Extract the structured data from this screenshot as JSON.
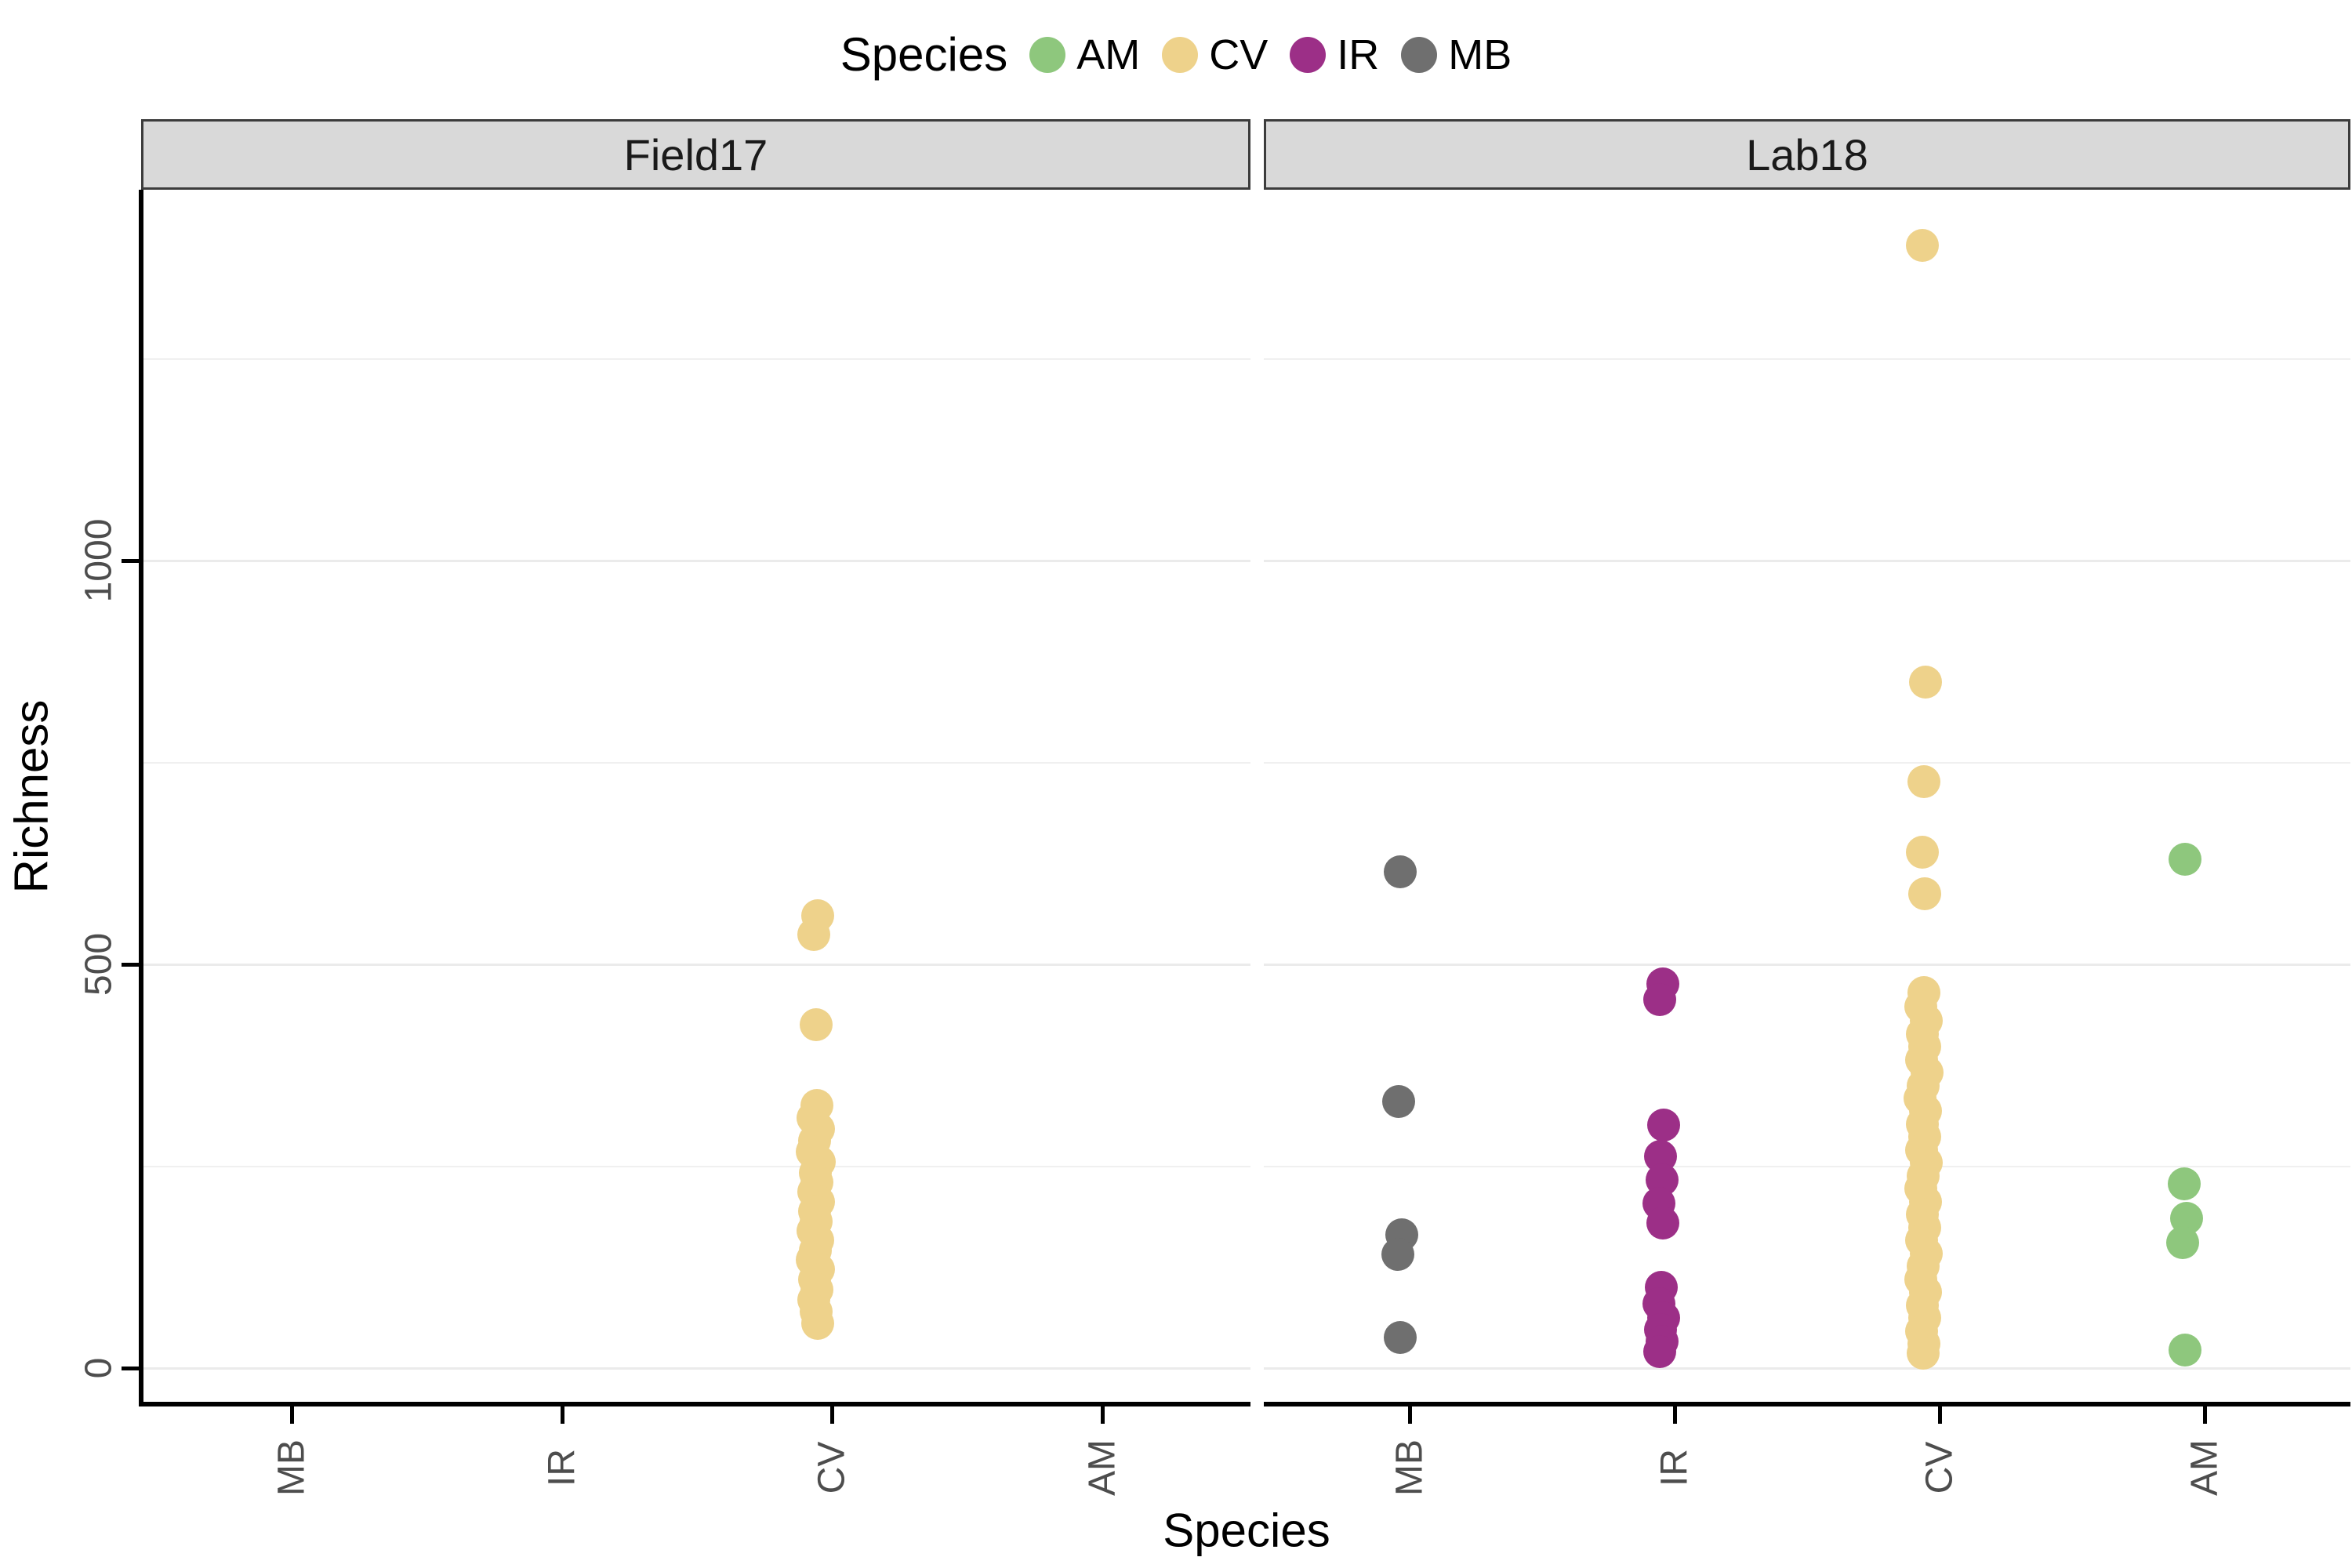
{
  "legend": {
    "title": "Species",
    "items": [
      {
        "label": "AM",
        "color": "#8ec77d"
      },
      {
        "label": "CV",
        "color": "#eed28b"
      },
      {
        "label": "IR",
        "color": "#9c2f87"
      },
      {
        "label": "MB",
        "color": "#6f6f6f"
      }
    ]
  },
  "chart_data": {
    "type": "scatter",
    "title": "",
    "xlabel": "Species",
    "ylabel": "Richness",
    "y_ticks": [
      0,
      500,
      1000
    ],
    "y_minor_gridlines": [
      250,
      750,
      1250
    ],
    "ylim": [
      -44,
      1460
    ],
    "grid": "on",
    "legend_position": "top",
    "x_categories": [
      "MB",
      "IR",
      "CV",
      "AM"
    ],
    "facets": [
      {
        "name": "Field17",
        "series": [
          {
            "species": "CV",
            "points": [
              [
                560,
                -18
              ],
              [
                537,
                -23
              ],
              [
                425,
                -20
              ],
              [
                325,
                -19
              ],
              [
                310,
                -24
              ],
              [
                296,
                -17
              ],
              [
                282,
                -22
              ],
              [
                268,
                -25
              ],
              [
                255,
                -16
              ],
              [
                242,
                -21
              ],
              [
                230,
                -19
              ],
              [
                218,
                -23
              ],
              [
                206,
                -17
              ],
              [
                194,
                -22
              ],
              [
                182,
                -20
              ],
              [
                170,
                -24
              ],
              [
                158,
                -18
              ],
              [
                146,
                -21
              ],
              [
                134,
                -25
              ],
              [
                122,
                -17
              ],
              [
                110,
                -22
              ],
              [
                97,
                -19
              ],
              [
                84,
                -23
              ],
              [
                70,
                -20
              ],
              [
                55,
                -18
              ]
            ]
          }
        ]
      },
      {
        "name": "Lab18",
        "series": [
          {
            "species": "MB",
            "points": [
              [
                615,
                -12
              ],
              [
                330,
                -14
              ],
              [
                165,
                -10
              ],
              [
                141,
                -15
              ],
              [
                38,
                -12
              ]
            ]
          },
          {
            "species": "IR",
            "points": [
              [
                476,
                -15
              ],
              [
                456,
                -19
              ],
              [
                301,
                -14
              ],
              [
                262,
                -18
              ],
              [
                233,
                -16
              ],
              [
                204,
                -20
              ],
              [
                180,
                -15
              ],
              [
                100,
                -17
              ],
              [
                80,
                -20
              ],
              [
                62,
                -14
              ],
              [
                48,
                -18
              ],
              [
                33,
                -16
              ],
              [
                20,
                -19
              ]
            ]
          },
          {
            "species": "CV",
            "points": [
              [
                1390,
                -22
              ],
              [
                850,
                -18
              ],
              [
                726,
                -20
              ],
              [
                639,
                -22
              ],
              [
                587,
                -19
              ],
              [
                465,
                -20
              ],
              [
                448,
                -24
              ],
              [
                430,
                -17
              ],
              [
                414,
                -22
              ],
              [
                398,
                -19
              ],
              [
                382,
                -23
              ],
              [
                366,
                -16
              ],
              [
                350,
                -21
              ],
              [
                334,
                -25
              ],
              [
                318,
                -18
              ],
              [
                302,
                -22
              ],
              [
                286,
                -19
              ],
              [
                270,
                -23
              ],
              [
                254,
                -17
              ],
              [
                238,
                -21
              ],
              [
                222,
                -24
              ],
              [
                206,
                -18
              ],
              [
                190,
                -22
              ],
              [
                174,
                -19
              ],
              [
                158,
                -23
              ],
              [
                142,
                -17
              ],
              [
                126,
                -21
              ],
              [
                110,
                -24
              ],
              [
                94,
                -18
              ],
              [
                78,
                -22
              ],
              [
                62,
                -19
              ],
              [
                46,
                -23
              ],
              [
                30,
                -20
              ],
              [
                18,
                -21
              ]
            ]
          },
          {
            "species": "AM",
            "points": [
              [
                630,
                -25
              ],
              [
                228,
                -26
              ],
              [
                185,
                -23
              ],
              [
                155,
                -28
              ],
              [
                22,
                -25
              ]
            ]
          }
        ]
      }
    ]
  }
}
